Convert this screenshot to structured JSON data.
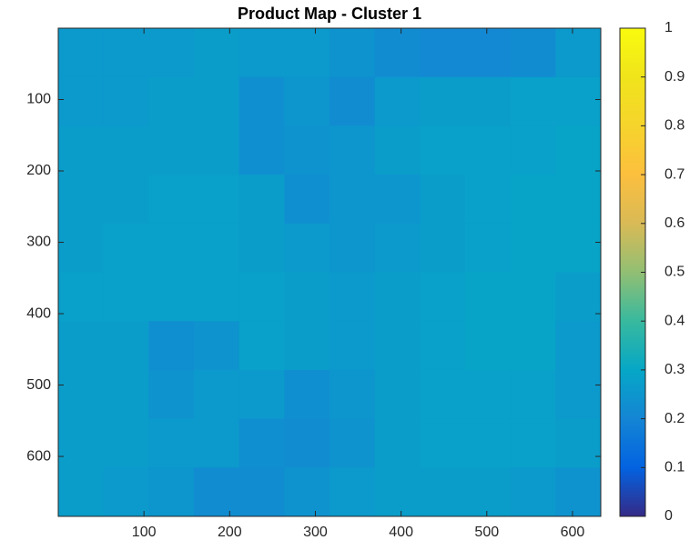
{
  "chart_data": {
    "type": "heatmap",
    "title": "Product Map - Cluster 1",
    "xlim": [
      0,
      633
    ],
    "ylim": [
      0,
      684
    ],
    "y_reversed": true,
    "xticks": [
      100,
      200,
      300,
      400,
      500,
      600
    ],
    "yticks": [
      100,
      200,
      300,
      400,
      500,
      600
    ],
    "clim": [
      0,
      1
    ],
    "cticks": [
      0,
      0.1,
      0.2,
      0.3,
      0.4,
      0.5,
      0.6,
      0.7,
      0.8,
      0.9,
      1
    ],
    "colormap": [
      "#352a87",
      "#0363e1",
      "#1485d4",
      "#06a7c6",
      "#38b99e",
      "#92bf73",
      "#d9ba56",
      "#fcbf3e",
      "#f6d42c",
      "#f0e41b",
      "#f9fb0e"
    ],
    "z": [
      [
        0.26,
        0.26,
        0.26,
        0.27,
        0.26,
        0.26,
        0.24,
        0.22,
        0.21,
        0.21,
        0.22,
        0.26
      ],
      [
        0.26,
        0.26,
        0.27,
        0.27,
        0.23,
        0.25,
        0.22,
        0.26,
        0.27,
        0.27,
        0.28,
        0.28
      ],
      [
        0.27,
        0.27,
        0.27,
        0.27,
        0.23,
        0.24,
        0.25,
        0.27,
        0.28,
        0.28,
        0.28,
        0.29
      ],
      [
        0.27,
        0.27,
        0.28,
        0.28,
        0.27,
        0.23,
        0.25,
        0.25,
        0.27,
        0.28,
        0.29,
        0.29
      ],
      [
        0.27,
        0.28,
        0.28,
        0.28,
        0.27,
        0.26,
        0.25,
        0.26,
        0.27,
        0.28,
        0.29,
        0.29
      ],
      [
        0.28,
        0.28,
        0.28,
        0.28,
        0.28,
        0.27,
        0.26,
        0.27,
        0.28,
        0.29,
        0.29,
        0.27
      ],
      [
        0.27,
        0.27,
        0.23,
        0.24,
        0.28,
        0.27,
        0.26,
        0.27,
        0.28,
        0.29,
        0.29,
        0.26
      ],
      [
        0.27,
        0.27,
        0.24,
        0.26,
        0.26,
        0.23,
        0.25,
        0.27,
        0.28,
        0.28,
        0.28,
        0.26
      ],
      [
        0.27,
        0.27,
        0.26,
        0.26,
        0.23,
        0.22,
        0.24,
        0.27,
        0.28,
        0.28,
        0.28,
        0.27
      ],
      [
        0.27,
        0.26,
        0.25,
        0.22,
        0.22,
        0.24,
        0.26,
        0.27,
        0.27,
        0.27,
        0.26,
        0.24
      ]
    ]
  }
}
